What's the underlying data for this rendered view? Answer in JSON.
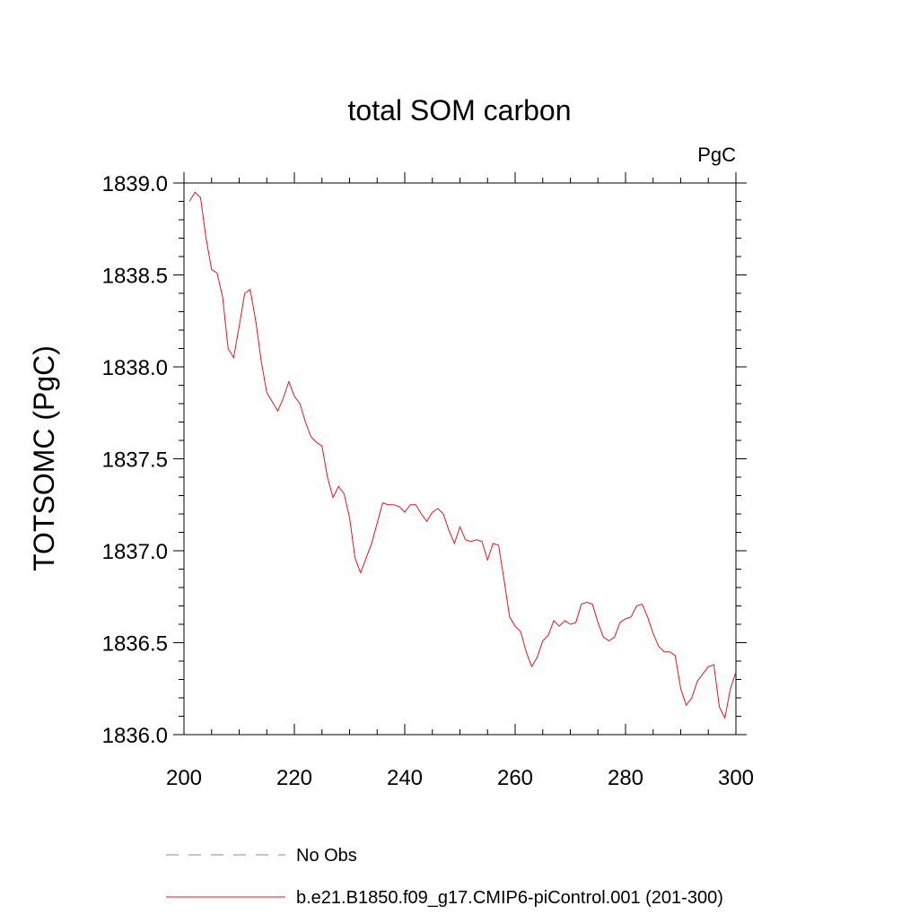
{
  "chart_data": {
    "type": "line",
    "title": "total SOM carbon",
    "units_label": "PgC",
    "ylabel": "TOTSOMC  (PgC)",
    "xlabel": "",
    "xlim": [
      200,
      300
    ],
    "ylim": [
      1836.0,
      1839.0
    ],
    "x_ticks": [
      "200",
      "220",
      "240",
      "260",
      "280",
      "300"
    ],
    "y_ticks": [
      "1836.0",
      "1836.5",
      "1837.0",
      "1837.5",
      "1838.0",
      "1838.5",
      "1839.0"
    ],
    "grid": false,
    "legend_position": "bottom",
    "series": [
      {
        "name": "No Obs",
        "color": "#8a7fd6",
        "dash": "dashed",
        "x": [],
        "y": []
      },
      {
        "name": "b.e21.B1850.f09_g17.CMIP6-piControl.001 (201-300)",
        "color": "#e8141b",
        "dash": "solid",
        "x": [
          201,
          202,
          203,
          204,
          205,
          206,
          207,
          208,
          209,
          210,
          211,
          212,
          213,
          214,
          215,
          216,
          217,
          218,
          219,
          220,
          221,
          222,
          223,
          224,
          225,
          226,
          227,
          228,
          229,
          230,
          231,
          232,
          233,
          234,
          235,
          236,
          237,
          238,
          239,
          240,
          241,
          242,
          243,
          244,
          245,
          246,
          247,
          248,
          249,
          250,
          251,
          252,
          253,
          254,
          255,
          256,
          257,
          258,
          259,
          260,
          261,
          262,
          263,
          264,
          265,
          266,
          267,
          268,
          269,
          270,
          271,
          272,
          273,
          274,
          275,
          276,
          277,
          278,
          279,
          280,
          281,
          282,
          283,
          284,
          285,
          286,
          287,
          288,
          289,
          290,
          291,
          292,
          293,
          294,
          295,
          296,
          297,
          298,
          299,
          300
        ],
        "y": [
          1838.9,
          1838.95,
          1838.92,
          1838.7,
          1838.53,
          1838.51,
          1838.38,
          1838.1,
          1838.05,
          1838.22,
          1838.4,
          1838.42,
          1838.25,
          1838.03,
          1837.86,
          1837.81,
          1837.76,
          1837.83,
          1837.92,
          1837.84,
          1837.8,
          1837.7,
          1837.62,
          1837.59,
          1837.57,
          1837.4,
          1837.29,
          1837.35,
          1837.31,
          1837.18,
          1836.96,
          1836.88,
          1836.96,
          1837.04,
          1837.15,
          1837.26,
          1837.25,
          1837.25,
          1837.24,
          1837.21,
          1837.25,
          1837.25,
          1837.2,
          1837.16,
          1837.21,
          1837.23,
          1837.2,
          1837.11,
          1837.04,
          1837.13,
          1837.06,
          1837.05,
          1837.06,
          1837.05,
          1836.95,
          1837.04,
          1837.03,
          1836.84,
          1836.64,
          1836.59,
          1836.56,
          1836.45,
          1836.37,
          1836.42,
          1836.51,
          1836.54,
          1836.62,
          1836.59,
          1836.62,
          1836.6,
          1836.61,
          1836.71,
          1836.72,
          1836.71,
          1836.61,
          1836.53,
          1836.51,
          1836.53,
          1836.61,
          1836.63,
          1836.64,
          1836.7,
          1836.71,
          1836.64,
          1836.55,
          1836.48,
          1836.45,
          1836.45,
          1836.43,
          1836.25,
          1836.16,
          1836.2,
          1836.29,
          1836.33,
          1836.37,
          1836.38,
          1836.15,
          1836.09,
          1836.25,
          1836.34
        ]
      }
    ]
  }
}
